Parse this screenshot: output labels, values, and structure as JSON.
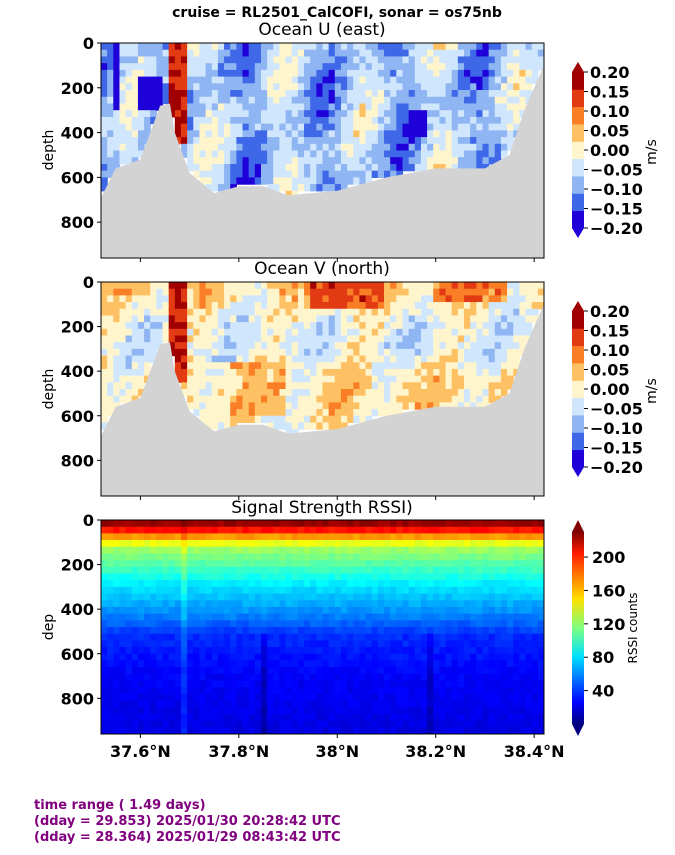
{
  "suptitle": "cruise = RL2501_CalCOFI,  sonar = os75nb",
  "footer": {
    "line1": "time range ( 1.49 days)",
    "line2": "(dday = 29.853) 2025/01/30 20:28:42 UTC",
    "line3": "(dday = 28.364) 2025/01/29 08:43:42 UTC"
  },
  "colors": {
    "seafloor": "#d3d3d3",
    "footer_text": "#800080"
  },
  "chart_data": [
    {
      "type": "heatmap",
      "title": "Ocean U (east)",
      "ylabel": "depth",
      "ylim": [
        960,
        0
      ],
      "xlim": [
        37.52,
        38.42
      ],
      "yticks": [
        "0",
        "200",
        "400",
        "600",
        "800"
      ],
      "colorbar": {
        "label": "m/s",
        "ticks": [
          "0.20",
          "0.15",
          "0.10",
          "0.05",
          "0.00",
          "−0.05",
          "−0.10",
          "−0.15",
          "−0.20"
        ],
        "levels": [
          -0.2,
          -0.15,
          -0.1,
          -0.05,
          0,
          0.05,
          0.1,
          0.15,
          0.2
        ],
        "colors": [
          "#2000d8",
          "#3f68e8",
          "#8fb6f2",
          "#d0e6fc",
          "#fff5cc",
          "#fdc063",
          "#f97e26",
          "#e23a12",
          "#a10000"
        ]
      },
      "seafloor_depth": [
        {
          "lat": 37.52,
          "depth": 690
        },
        {
          "lat": 37.55,
          "depth": 560
        },
        {
          "lat": 37.6,
          "depth": 520
        },
        {
          "lat": 37.64,
          "depth": 280
        },
        {
          "lat": 37.66,
          "depth": 270
        },
        {
          "lat": 37.67,
          "depth": 400
        },
        {
          "lat": 37.7,
          "depth": 580
        },
        {
          "lat": 37.75,
          "depth": 670
        },
        {
          "lat": 37.8,
          "depth": 640
        },
        {
          "lat": 37.85,
          "depth": 640
        },
        {
          "lat": 37.9,
          "depth": 680
        },
        {
          "lat": 38.0,
          "depth": 660
        },
        {
          "lat": 38.1,
          "depth": 600
        },
        {
          "lat": 38.2,
          "depth": 560
        },
        {
          "lat": 38.3,
          "depth": 560
        },
        {
          "lat": 38.35,
          "depth": 500
        },
        {
          "lat": 38.38,
          "depth": 300
        },
        {
          "lat": 38.42,
          "depth": 100
        }
      ]
    },
    {
      "type": "heatmap",
      "title": "Ocean V (north)",
      "ylabel": "depth",
      "ylim": [
        960,
        0
      ],
      "xlim": [
        37.52,
        38.42
      ],
      "yticks": [
        "0",
        "200",
        "400",
        "600",
        "800"
      ],
      "colorbar": {
        "label": "m/s",
        "ticks": [
          "0.20",
          "0.15",
          "0.10",
          "0.05",
          "0.00",
          "−0.05",
          "−0.10",
          "−0.15",
          "−0.20"
        ],
        "levels": [
          -0.2,
          -0.15,
          -0.1,
          -0.05,
          0,
          0.05,
          0.1,
          0.15,
          0.2
        ],
        "colors": [
          "#2000d8",
          "#3f68e8",
          "#8fb6f2",
          "#d0e6fc",
          "#fff5cc",
          "#fdc063",
          "#f97e26",
          "#e23a12",
          "#a10000"
        ]
      },
      "seafloor_depth": [
        {
          "lat": 37.52,
          "depth": 690
        },
        {
          "lat": 37.55,
          "depth": 560
        },
        {
          "lat": 37.6,
          "depth": 520
        },
        {
          "lat": 37.64,
          "depth": 280
        },
        {
          "lat": 37.66,
          "depth": 270
        },
        {
          "lat": 37.67,
          "depth": 400
        },
        {
          "lat": 37.7,
          "depth": 580
        },
        {
          "lat": 37.75,
          "depth": 670
        },
        {
          "lat": 37.8,
          "depth": 640
        },
        {
          "lat": 37.85,
          "depth": 640
        },
        {
          "lat": 37.9,
          "depth": 680
        },
        {
          "lat": 38.0,
          "depth": 660
        },
        {
          "lat": 38.1,
          "depth": 600
        },
        {
          "lat": 38.2,
          "depth": 560
        },
        {
          "lat": 38.3,
          "depth": 560
        },
        {
          "lat": 38.35,
          "depth": 500
        },
        {
          "lat": 38.38,
          "depth": 300
        },
        {
          "lat": 38.42,
          "depth": 100
        }
      ]
    },
    {
      "type": "heatmap",
      "title": "Signal Strength RSSI)",
      "ylabel": "dep",
      "ylim": [
        960,
        0
      ],
      "xlim": [
        37.52,
        38.42
      ],
      "yticks": [
        "0",
        "200",
        "400",
        "600",
        "800"
      ],
      "xticks": [
        {
          "label": "37.6°N",
          "lat": 37.6
        },
        {
          "label": "37.8°N",
          "lat": 37.8
        },
        {
          "label": "38°N",
          "lat": 38.0
        },
        {
          "label": "38.2°N",
          "lat": 38.2
        },
        {
          "label": "38.4°N",
          "lat": 38.4
        }
      ],
      "colorbar": {
        "label": "RSSI counts",
        "ticks": [
          "200",
          "160",
          "120",
          "80",
          "40"
        ],
        "tick_values": [
          200,
          160,
          120,
          80,
          40
        ],
        "range": [
          0,
          230
        ]
      },
      "profile_by_depth": [
        {
          "depth": 20,
          "rssi": 225
        },
        {
          "depth": 60,
          "rssi": 180
        },
        {
          "depth": 120,
          "rssi": 125
        },
        {
          "depth": 200,
          "rssi": 105
        },
        {
          "depth": 300,
          "rssi": 80
        },
        {
          "depth": 420,
          "rssi": 60
        },
        {
          "depth": 520,
          "rssi": 38
        },
        {
          "depth": 700,
          "rssi": 28
        },
        {
          "depth": 950,
          "rssi": 22
        }
      ]
    }
  ]
}
